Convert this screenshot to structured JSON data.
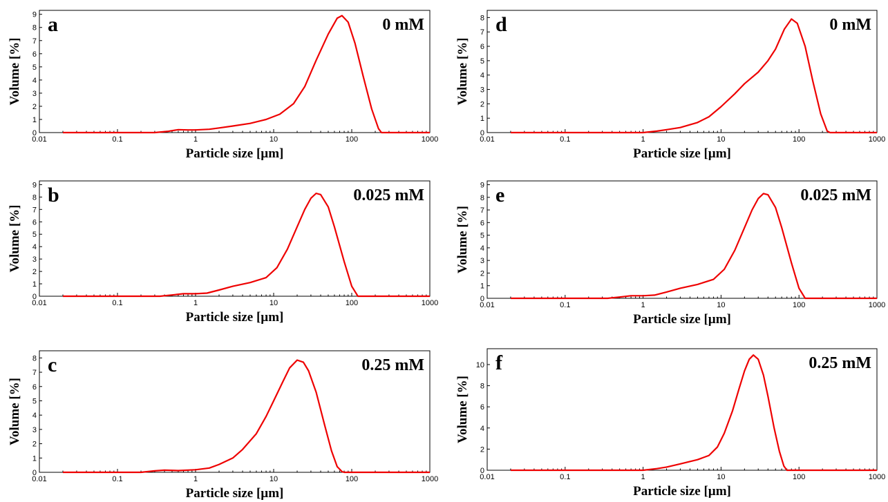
{
  "chart_data": [
    {
      "type": "line",
      "panel": "a",
      "label": "0 mM",
      "xlabel": "Particle size [µm]",
      "ylabel": "Volume [%]",
      "x_scale": "log",
      "xlim": [
        0.01,
        1000
      ],
      "x_ticks": [
        "0.01",
        "0.1",
        "1",
        "10",
        "100",
        "1000"
      ],
      "ylim": [
        0,
        9.3
      ],
      "y_ticks": [
        "0",
        "1",
        "2",
        "3",
        "4",
        "5",
        "6",
        "7",
        "8",
        "9"
      ],
      "color": "#ee0000",
      "series": [
        {
          "x": [
            0.02,
            0.3,
            0.45,
            0.6,
            0.8,
            1.0,
            1.5,
            2,
            3,
            5,
            8,
            12,
            18,
            25,
            35,
            50,
            65,
            75,
            90,
            110,
            140,
            180,
            220,
            240,
            1000
          ],
          "y": [
            0,
            0,
            0.1,
            0.22,
            0.2,
            0.2,
            0.25,
            0.35,
            0.5,
            0.7,
            1.0,
            1.4,
            2.2,
            3.5,
            5.5,
            7.5,
            8.7,
            8.9,
            8.4,
            6.8,
            4.3,
            1.8,
            0.3,
            0,
            0
          ]
        }
      ]
    },
    {
      "type": "line",
      "panel": "b",
      "label": "0.025 mM",
      "xlabel": "Particle size [µm]",
      "ylabel": "Volume [%]",
      "x_scale": "log",
      "xlim": [
        0.01,
        1000
      ],
      "x_ticks": [
        "0.01",
        "0.1",
        "1",
        "10",
        "100",
        "1000"
      ],
      "ylim": [
        0,
        9.3
      ],
      "y_ticks": [
        "0",
        "1",
        "2",
        "3",
        "4",
        "5",
        "6",
        "7",
        "8",
        "9"
      ],
      "color": "#ee0000",
      "series": [
        {
          "x": [
            0.02,
            0.35,
            0.5,
            0.7,
            1.0,
            1.4,
            2,
            3,
            5,
            8,
            11,
            15,
            20,
            25,
            30,
            35,
            40,
            50,
            60,
            80,
            100,
            120,
            1000
          ],
          "y": [
            0,
            0,
            0.1,
            0.2,
            0.2,
            0.25,
            0.5,
            0.8,
            1.1,
            1.5,
            2.3,
            3.8,
            5.6,
            7.0,
            7.9,
            8.3,
            8.2,
            7.2,
            5.6,
            2.8,
            0.8,
            0,
            0
          ]
        }
      ]
    },
    {
      "type": "line",
      "panel": "c",
      "label": "0.25 mM",
      "xlabel": "Particle size [µm]",
      "ylabel": "Volume [%]",
      "x_scale": "log",
      "xlim": [
        0.01,
        1000
      ],
      "x_ticks": [
        "0.01",
        "0.1",
        "1",
        "10",
        "100",
        "1000"
      ],
      "ylim": [
        0,
        8.5
      ],
      "y_ticks": [
        "0",
        "1",
        "2",
        "3",
        "4",
        "5",
        "6",
        "7",
        "8"
      ],
      "color": "#ee0000",
      "series": [
        {
          "x": [
            0.02,
            0.2,
            0.3,
            0.4,
            0.6,
            1.0,
            1.5,
            2,
            3,
            4,
            6,
            8,
            10,
            13,
            16,
            20,
            24,
            28,
            35,
            45,
            55,
            65,
            75,
            80,
            1000
          ],
          "y": [
            0,
            0,
            0.1,
            0.15,
            0.12,
            0.18,
            0.3,
            0.55,
            1.0,
            1.6,
            2.7,
            3.9,
            5.0,
            6.3,
            7.3,
            7.85,
            7.7,
            7.1,
            5.6,
            3.3,
            1.5,
            0.4,
            0.05,
            0,
            0
          ]
        }
      ]
    },
    {
      "type": "line",
      "panel": "d",
      "label": "0 mM",
      "xlabel": "Particle size [µm]",
      "ylabel": "Volume [%]",
      "x_scale": "log",
      "xlim": [
        0.01,
        1000
      ],
      "x_ticks": [
        "0.01",
        "0.1",
        "1",
        "10",
        "100",
        "1000"
      ],
      "ylim": [
        0,
        8.5
      ],
      "y_ticks": [
        "0",
        "1",
        "2",
        "3",
        "4",
        "5",
        "6",
        "7",
        "8"
      ],
      "color": "#ee0000",
      "series": [
        {
          "x": [
            0.02,
            1.0,
            1.5,
            2,
            3,
            5,
            7,
            10,
            15,
            20,
            30,
            40,
            50,
            65,
            80,
            95,
            120,
            150,
            190,
            230,
            250,
            1000
          ],
          "y": [
            0,
            0,
            0.1,
            0.2,
            0.35,
            0.7,
            1.1,
            1.8,
            2.7,
            3.4,
            4.2,
            5.0,
            5.8,
            7.2,
            7.9,
            7.6,
            6.0,
            3.6,
            1.3,
            0.1,
            0,
            0
          ]
        }
      ]
    },
    {
      "type": "line",
      "panel": "e",
      "label": "0.025 mM",
      "xlabel": "Particle size [µm]",
      "ylabel": "Volume [%]",
      "x_scale": "log",
      "xlim": [
        0.01,
        1000
      ],
      "x_ticks": [
        "0.01",
        "0.1",
        "1",
        "10",
        "100",
        "1000"
      ],
      "ylim": [
        0,
        9.3
      ],
      "y_ticks": [
        "0",
        "1",
        "2",
        "3",
        "4",
        "5",
        "6",
        "7",
        "8",
        "9"
      ],
      "color": "#ee0000",
      "series": [
        {
          "x": [
            0.02,
            0.35,
            0.5,
            0.7,
            1.0,
            1.4,
            2,
            3,
            5,
            8,
            11,
            15,
            20,
            25,
            30,
            35,
            40,
            50,
            60,
            80,
            100,
            120,
            1000
          ],
          "y": [
            0,
            0,
            0.1,
            0.2,
            0.2,
            0.25,
            0.5,
            0.8,
            1.1,
            1.5,
            2.3,
            3.8,
            5.6,
            7.0,
            7.9,
            8.3,
            8.2,
            7.2,
            5.6,
            2.8,
            0.8,
            0,
            0
          ]
        }
      ]
    },
    {
      "type": "line",
      "panel": "f",
      "label": "0.25 mM",
      "xlabel": "Particle size [µm]",
      "ylabel": "Volume [%]",
      "x_scale": "log",
      "xlim": [
        0.01,
        1000
      ],
      "x_ticks": [
        "0.01",
        "0.1",
        "1",
        "10",
        "100",
        "1000"
      ],
      "ylim": [
        0,
        11.5
      ],
      "y_ticks": [
        "0",
        "2",
        "4",
        "6",
        "8",
        "10"
      ],
      "color": "#ee0000",
      "series": [
        {
          "x": [
            0.02,
            1.0,
            1.5,
            2,
            3,
            5,
            7,
            9,
            11,
            14,
            17,
            20,
            23,
            26,
            30,
            35,
            40,
            48,
            56,
            64,
            70,
            1000
          ],
          "y": [
            0,
            0,
            0.15,
            0.3,
            0.6,
            1.0,
            1.4,
            2.2,
            3.5,
            5.6,
            7.7,
            9.4,
            10.5,
            10.9,
            10.5,
            9.0,
            7.0,
            4.0,
            1.8,
            0.4,
            0,
            0
          ]
        }
      ]
    }
  ]
}
